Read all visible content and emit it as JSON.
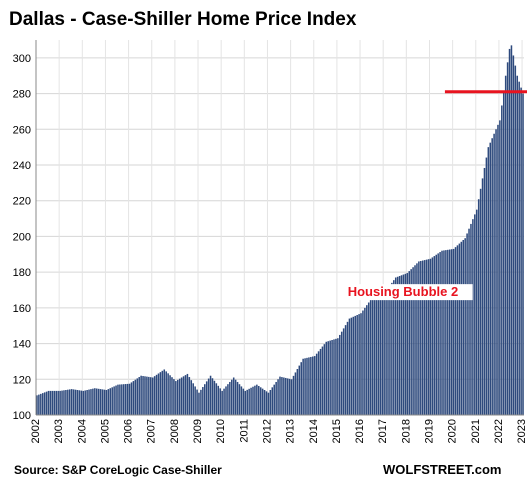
{
  "chart_data": {
    "type": "bar",
    "title": "Dallas - Case-Shiller Home Price Index",
    "xlabel": "",
    "ylabel": "",
    "ylim": [
      100,
      310
    ],
    "yticks": [
      100,
      120,
      140,
      160,
      180,
      200,
      220,
      240,
      260,
      280,
      300
    ],
    "x_tick_labels": [
      "2002",
      "2003",
      "2004",
      "2005",
      "2006",
      "2007",
      "2008",
      "2009",
      "2010",
      "2011",
      "2012",
      "2013",
      "2014",
      "2015",
      "2016",
      "2017",
      "2018",
      "2019",
      "2020",
      "2021",
      "2022",
      "2023"
    ],
    "grid": true,
    "bar_color": "#2e4a7d",
    "start": "2002-01",
    "end": "2023-01",
    "annual_values": [
      [
        "2002-01",
        111.0
      ],
      [
        "2002-07",
        113.5
      ],
      [
        "2003-01",
        113.5
      ],
      [
        "2003-07",
        114.5
      ],
      [
        "2004-01",
        113.5
      ],
      [
        "2004-07",
        115.0
      ],
      [
        "2005-01",
        114.0
      ],
      [
        "2005-07",
        117.0
      ],
      [
        "2006-01",
        117.5
      ],
      [
        "2006-07",
        122.0
      ],
      [
        "2007-01",
        121.0
      ],
      [
        "2007-07",
        125.5
      ],
      [
        "2008-01",
        119.0
      ],
      [
        "2008-07",
        123.0
      ],
      [
        "2009-01",
        112.5
      ],
      [
        "2009-07",
        122.0
      ],
      [
        "2010-01",
        113.5
      ],
      [
        "2010-07",
        121.0
      ],
      [
        "2011-01",
        113.5
      ],
      [
        "2011-07",
        117.0
      ],
      [
        "2012-01",
        112.5
      ],
      [
        "2012-07",
        121.5
      ],
      [
        "2013-01",
        120.0
      ],
      [
        "2013-07",
        131.5
      ],
      [
        "2014-01",
        133.0
      ],
      [
        "2014-07",
        141.0
      ],
      [
        "2015-01",
        143.0
      ],
      [
        "2015-07",
        154.0
      ],
      [
        "2016-01",
        157.0
      ],
      [
        "2016-07",
        166.0
      ],
      [
        "2017-01",
        168.0
      ],
      [
        "2017-07",
        177.0
      ],
      [
        "2018-01",
        179.5
      ],
      [
        "2018-07",
        186.0
      ],
      [
        "2019-01",
        187.5
      ],
      [
        "2019-07",
        192.0
      ],
      [
        "2020-01",
        193.0
      ],
      [
        "2020-07",
        199.0
      ],
      [
        "2021-01",
        215.0
      ],
      [
        "2021-07",
        250.0
      ],
      [
        "2022-01",
        265.0
      ],
      [
        "2022-04",
        290.0
      ],
      [
        "2022-06",
        305.0
      ],
      [
        "2022-07",
        307.0
      ],
      [
        "2022-10",
        290.0
      ],
      [
        "2023-01",
        280.0
      ]
    ],
    "reference_line": {
      "value": 281,
      "from": "2019-09",
      "to": "2023-01",
      "color": "#e8131f"
    },
    "annotation": {
      "text": "Housing Bubble 2",
      "at": "2015-04",
      "value": 166
    },
    "source": "Source: S&P CoreLogic Case-Shiller",
    "brand": "WOLFSTREET.com"
  }
}
